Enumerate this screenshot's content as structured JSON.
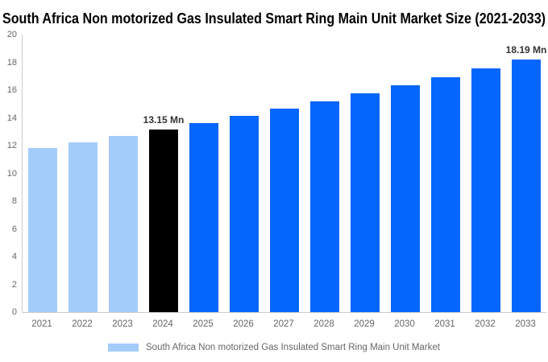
{
  "chart_data": {
    "type": "bar",
    "title": "South Africa Non motorized Gas Insulated Smart Ring Main Unit Market Size (2021-2033)",
    "categories": [
      "2021",
      "2022",
      "2023",
      "2024",
      "2025",
      "2026",
      "2027",
      "2028",
      "2029",
      "2030",
      "2031",
      "2032",
      "2033"
    ],
    "values": [
      11.8,
      12.23,
      12.68,
      13.15,
      13.63,
      14.13,
      14.65,
      15.19,
      15.75,
      16.33,
      16.93,
      17.55,
      18.19
    ],
    "unit": "Mn",
    "xlabel": "",
    "ylabel": "",
    "ylim": [
      0,
      20
    ],
    "ytick_step": 2,
    "grid": false,
    "legend_position": "bottom",
    "bar_colors": [
      "#a3ccfa",
      "#a3ccfa",
      "#a3ccfa",
      "#000000",
      "#0566fc",
      "#0566fc",
      "#0566fc",
      "#0566fc",
      "#0566fc",
      "#0566fc",
      "#0566fc",
      "#0566fc",
      "#0566fc"
    ],
    "point_labels": [
      {
        "category": "2024",
        "text": "13.15 Mn"
      },
      {
        "category": "2033",
        "text": "18.19 Mn"
      }
    ],
    "legend": {
      "label": "South Africa Non motorized Gas Insulated Smart Ring Main Unit Market",
      "swatch_color": "#a3ccfa"
    },
    "colors": {
      "axis_line": "#cccccc",
      "tick_label": "#666666",
      "data_label": "#333333",
      "title": "#000000",
      "background": "#ffffff"
    }
  }
}
